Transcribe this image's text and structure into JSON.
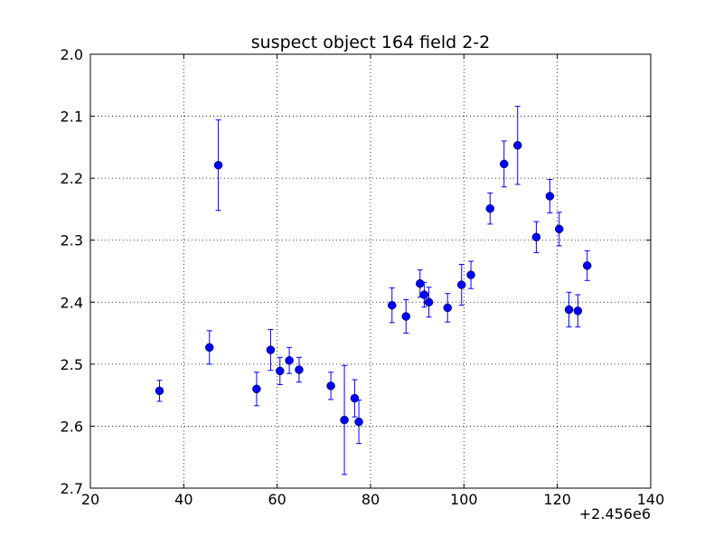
{
  "chart_data": {
    "type": "scatter",
    "title": "suspect object 164 field 2-2",
    "xlabel": "",
    "ylabel": "",
    "x_offset_label": "+2.456e6",
    "xlim": [
      20,
      140
    ],
    "ylim": [
      2.0,
      2.7
    ],
    "y_inverted": true,
    "grid": true,
    "x_ticks": [
      20,
      40,
      60,
      80,
      100,
      120,
      140
    ],
    "y_ticks": [
      2.0,
      2.1,
      2.2,
      2.3,
      2.4,
      2.5,
      2.6,
      2.7
    ],
    "x_tick_labels": [
      "20",
      "40",
      "60",
      "80",
      "100",
      "120",
      "140"
    ],
    "y_tick_labels": [
      "2.0",
      "2.1",
      "2.2",
      "2.3",
      "2.4",
      "2.5",
      "2.6",
      "2.7"
    ],
    "marker_color": "#0000ff",
    "points": [
      {
        "x": 2456034.8,
        "y": 2.543,
        "err": 0.017
      },
      {
        "x": 2456045.5,
        "y": 2.473,
        "err": 0.027
      },
      {
        "x": 2456047.4,
        "y": 2.179,
        "err": 0.073
      },
      {
        "x": 2456055.6,
        "y": 2.54,
        "err": 0.027
      },
      {
        "x": 2456058.6,
        "y": 2.477,
        "err": 0.033
      },
      {
        "x": 2456060.6,
        "y": 2.511,
        "err": 0.022
      },
      {
        "x": 2456062.6,
        "y": 2.494,
        "err": 0.021
      },
      {
        "x": 2456064.7,
        "y": 2.509,
        "err": 0.02
      },
      {
        "x": 2456071.5,
        "y": 2.535,
        "err": 0.022
      },
      {
        "x": 2456074.4,
        "y": 2.59,
        "err": 0.088
      },
      {
        "x": 2456076.6,
        "y": 2.555,
        "err": 0.03
      },
      {
        "x": 2456077.5,
        "y": 2.593,
        "err": 0.035
      },
      {
        "x": 2456084.6,
        "y": 2.405,
        "err": 0.028
      },
      {
        "x": 2456087.6,
        "y": 2.423,
        "err": 0.027
      },
      {
        "x": 2456090.6,
        "y": 2.37,
        "err": 0.022
      },
      {
        "x": 2456091.5,
        "y": 2.388,
        "err": 0.02
      },
      {
        "x": 2456092.5,
        "y": 2.4,
        "err": 0.024
      },
      {
        "x": 2456096.5,
        "y": 2.409,
        "err": 0.023
      },
      {
        "x": 2456099.5,
        "y": 2.372,
        "err": 0.033
      },
      {
        "x": 2456101.5,
        "y": 2.356,
        "err": 0.022
      },
      {
        "x": 2456105.6,
        "y": 2.249,
        "err": 0.025
      },
      {
        "x": 2456108.6,
        "y": 2.177,
        "err": 0.037
      },
      {
        "x": 2456111.5,
        "y": 2.147,
        "err": 0.063
      },
      {
        "x": 2456115.5,
        "y": 2.295,
        "err": 0.025
      },
      {
        "x": 2456118.4,
        "y": 2.229,
        "err": 0.027
      },
      {
        "x": 2456120.4,
        "y": 2.282,
        "err": 0.027
      },
      {
        "x": 2456122.5,
        "y": 2.412,
        "err": 0.028
      },
      {
        "x": 2456124.4,
        "y": 2.414,
        "err": 0.026
      },
      {
        "x": 2456126.4,
        "y": 2.341,
        "err": 0.024
      }
    ]
  }
}
